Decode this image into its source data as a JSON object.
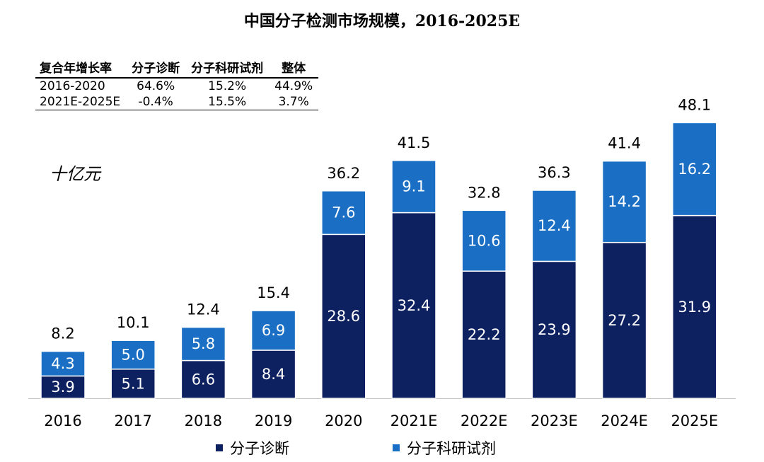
{
  "title": "中国分子检测市场规模，2016-2025E",
  "unit_label": "十亿元",
  "cagr_table": {
    "headers": [
      "复合年增长率",
      "分子诊断",
      "分子科研试剂",
      "整体"
    ],
    "rows": [
      [
        "2016-2020",
        "64.6%",
        "15.2%",
        "44.9%"
      ],
      [
        "2021E-2025E",
        "-0.4%",
        "15.5%",
        "3.7%"
      ]
    ]
  },
  "colors": {
    "diagnosis": "#0d2060",
    "research": "#1a6fc4"
  },
  "chart_data": {
    "type": "bar",
    "stacked": true,
    "categories": [
      "2016",
      "2017",
      "2018",
      "2019",
      "2020",
      "2021E",
      "2022E",
      "2023E",
      "2024E",
      "2025E"
    ],
    "series": [
      {
        "name": "分子诊断",
        "values": [
          3.9,
          5.1,
          6.6,
          8.4,
          28.6,
          32.4,
          22.2,
          23.9,
          27.2,
          31.9
        ]
      },
      {
        "name": "分子科研试剂",
        "values": [
          4.3,
          5.0,
          5.8,
          6.9,
          7.6,
          9.1,
          10.6,
          12.4,
          14.2,
          16.2
        ]
      }
    ],
    "totals": [
      "8.2",
      "10.1",
      "12.4",
      "15.4",
      "36.2",
      "41.5",
      "32.8",
      "36.3",
      "41.4",
      "48.1"
    ],
    "ylim": [
      0,
      50
    ],
    "legend_position": "bottom"
  }
}
